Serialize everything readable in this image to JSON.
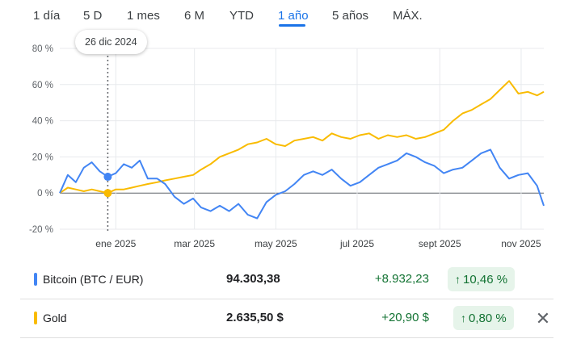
{
  "tabs": [
    "1 día",
    "5 D",
    "1 mes",
    "6 M",
    "YTD",
    "1 año",
    "5 años",
    "MÁX."
  ],
  "active_tab": "1 año",
  "tooltip": {
    "date": "26 dic 2024"
  },
  "colors": {
    "bitcoin": "#4285f4",
    "gold": "#f9bb00",
    "positive": "#137333",
    "positive_bg": "#e6f4ea",
    "active": "#1a73e8"
  },
  "chart_data": {
    "type": "line",
    "x_tick_labels": [
      "ene 2025",
      "mar 2025",
      "may 2025",
      "jul 2025",
      "sept 2025",
      "nov 2025"
    ],
    "y_tick_labels": [
      "80 %",
      "60 %",
      "40 %",
      "20 %",
      "0 %",
      "-20 %"
    ],
    "ylim": [
      -20,
      80
    ],
    "grid": true,
    "x": [
      "2024-11-20",
      "2024-11-26",
      "2024-12-02",
      "2024-12-08",
      "2024-12-14",
      "2024-12-20",
      "2024-12-26",
      "2025-01-01",
      "2025-01-07",
      "2025-01-13",
      "2025-01-19",
      "2025-01-25",
      "2025-02-01",
      "2025-02-07",
      "2025-02-14",
      "2025-02-21",
      "2025-02-28",
      "2025-03-06",
      "2025-03-13",
      "2025-03-20",
      "2025-03-27",
      "2025-04-03",
      "2025-04-10",
      "2025-04-17",
      "2025-04-24",
      "2025-05-01",
      "2025-05-08",
      "2025-05-15",
      "2025-05-22",
      "2025-05-29",
      "2025-06-05",
      "2025-06-12",
      "2025-06-19",
      "2025-06-26",
      "2025-07-03",
      "2025-07-10",
      "2025-07-17",
      "2025-07-24",
      "2025-07-31",
      "2025-08-07",
      "2025-08-14",
      "2025-08-21",
      "2025-08-28",
      "2025-09-04",
      "2025-09-11",
      "2025-09-18",
      "2025-09-25",
      "2025-10-02",
      "2025-10-09",
      "2025-10-16",
      "2025-10-23",
      "2025-10-30",
      "2025-11-06",
      "2025-11-13",
      "2025-11-18"
    ],
    "series": [
      {
        "name": "Bitcoin (BTC / EUR)",
        "values": [
          0,
          10,
          6,
          14,
          17,
          12,
          9,
          11,
          16,
          14,
          18,
          8,
          8,
          5,
          -2,
          -6,
          -3,
          -8,
          -10,
          -7,
          -10,
          -6,
          -12,
          -14,
          -5,
          -1,
          1,
          5,
          10,
          12,
          10,
          13,
          8,
          4,
          6,
          10,
          14,
          16,
          18,
          22,
          20,
          17,
          15,
          11,
          13,
          14,
          18,
          22,
          24,
          14,
          8,
          10,
          11,
          4,
          -7
        ]
      },
      {
        "name": "Gold",
        "values": [
          0,
          3,
          2,
          1,
          2,
          1,
          0,
          2,
          2,
          3,
          4,
          5,
          6,
          7,
          8,
          9,
          10,
          13,
          16,
          20,
          22,
          24,
          27,
          28,
          30,
          27,
          26,
          29,
          30,
          31,
          29,
          33,
          31,
          30,
          32,
          33,
          30,
          32,
          31,
          32,
          30,
          31,
          33,
          35,
          40,
          44,
          46,
          49,
          52,
          57,
          62,
          55,
          56,
          54,
          56
        ]
      }
    ]
  },
  "legend": [
    {
      "name": "Bitcoin (BTC / EUR)",
      "value": "94.303,38",
      "change": "+8.932,23",
      "pct": "10,46 %"
    },
    {
      "name": "Gold",
      "value": "2.635,50 $",
      "change": "+20,90 $",
      "pct": "0,80 %"
    }
  ]
}
